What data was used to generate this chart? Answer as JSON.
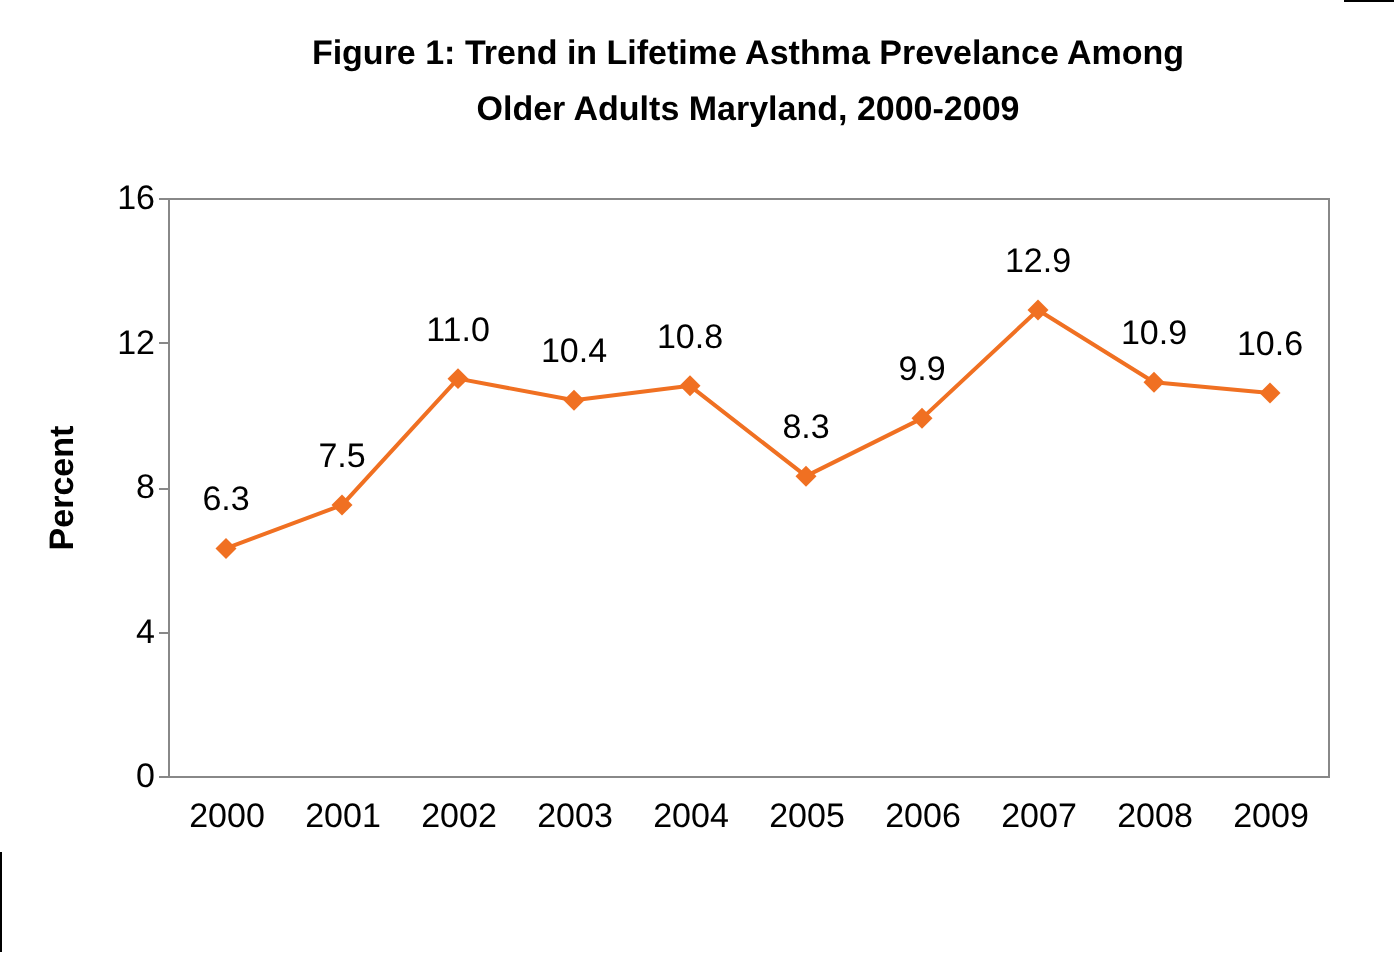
{
  "chart_data": {
    "type": "line",
    "title": "Figure 1: Trend in Lifetime Asthma Prevelance Among Older Adults Maryland, 2000-2009",
    "ylabel": "Percent",
    "categories": [
      "2000",
      "2001",
      "2002",
      "2003",
      "2004",
      "2005",
      "2006",
      "2007",
      "2008",
      "2009"
    ],
    "series": [
      {
        "color": "#f07022",
        "values": [
          6.3,
          7.5,
          11.0,
          10.4,
          10.8,
          8.3,
          9.9,
          12.9,
          10.9,
          10.6
        ],
        "value_labels": [
          "6.3",
          "7.5",
          "11.0",
          "10.4",
          "10.8",
          "8.3",
          "9.9",
          "12.9",
          "10.9",
          "10.6"
        ]
      }
    ],
    "ylim": [
      0,
      16
    ],
    "yticks": [
      0,
      4,
      8,
      12,
      16
    ],
    "grid": false,
    "marker": "diamond",
    "line_style": "solid"
  }
}
